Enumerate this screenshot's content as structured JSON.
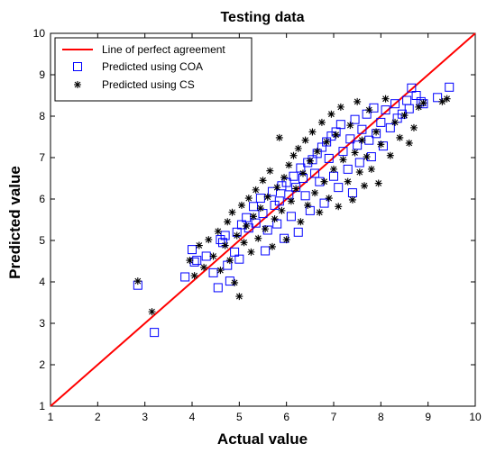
{
  "chart_data": {
    "type": "scatter",
    "title": "Testing data",
    "xlabel": "Actual value",
    "ylabel": "Predicted value",
    "xlim": [
      1,
      10
    ],
    "ylim": [
      1,
      10
    ],
    "xticks": [
      1,
      2,
      3,
      4,
      5,
      6,
      7,
      8,
      9,
      10
    ],
    "yticks": [
      1,
      2,
      3,
      4,
      5,
      6,
      7,
      8,
      9,
      10
    ],
    "grid": false,
    "legend_position": "top-left",
    "reference_line": {
      "name": "Line of perfect agreement",
      "x": [
        1,
        10
      ],
      "y": [
        1,
        10
      ],
      "color": "#ff0000"
    },
    "series": [
      {
        "name": "Predicted using COA",
        "marker": "square",
        "color": "#0000ff",
        "points": [
          [
            2.85,
            3.92
          ],
          [
            3.2,
            2.78
          ],
          [
            3.85,
            4.12
          ],
          [
            4.0,
            4.78
          ],
          [
            4.05,
            4.48
          ],
          [
            4.1,
            4.52
          ],
          [
            4.3,
            4.62
          ],
          [
            4.45,
            4.22
          ],
          [
            4.55,
            3.86
          ],
          [
            4.6,
            5.02
          ],
          [
            4.65,
            4.95
          ],
          [
            4.7,
            5.12
          ],
          [
            4.75,
            4.4
          ],
          [
            4.8,
            4.02
          ],
          [
            4.9,
            4.72
          ],
          [
            4.95,
            5.2
          ],
          [
            5.0,
            4.55
          ],
          [
            5.05,
            5.38
          ],
          [
            5.15,
            5.55
          ],
          [
            5.2,
            5.3
          ],
          [
            5.3,
            5.82
          ],
          [
            5.35,
            5.42
          ],
          [
            5.45,
            6.02
          ],
          [
            5.5,
            5.65
          ],
          [
            5.55,
            4.75
          ],
          [
            5.6,
            5.25
          ],
          [
            5.7,
            6.18
          ],
          [
            5.75,
            5.85
          ],
          [
            5.8,
            5.4
          ],
          [
            5.85,
            5.95
          ],
          [
            5.9,
            6.32
          ],
          [
            5.95,
            5.05
          ],
          [
            6.0,
            6.4
          ],
          [
            6.05,
            6.1
          ],
          [
            6.1,
            5.58
          ],
          [
            6.15,
            6.55
          ],
          [
            6.2,
            6.28
          ],
          [
            6.25,
            5.2
          ],
          [
            6.3,
            6.75
          ],
          [
            6.35,
            6.5
          ],
          [
            6.4,
            6.08
          ],
          [
            6.45,
            6.88
          ],
          [
            6.5,
            5.72
          ],
          [
            6.55,
            6.95
          ],
          [
            6.6,
            6.62
          ],
          [
            6.65,
            7.1
          ],
          [
            6.7,
            6.42
          ],
          [
            6.75,
            7.25
          ],
          [
            6.8,
            5.9
          ],
          [
            6.85,
            7.38
          ],
          [
            6.9,
            6.98
          ],
          [
            6.95,
            7.52
          ],
          [
            7.0,
            6.55
          ],
          [
            7.05,
            7.62
          ],
          [
            7.1,
            6.28
          ],
          [
            7.15,
            7.8
          ],
          [
            7.2,
            7.15
          ],
          [
            7.3,
            6.72
          ],
          [
            7.35,
            7.45
          ],
          [
            7.4,
            6.15
          ],
          [
            7.45,
            7.92
          ],
          [
            7.5,
            7.3
          ],
          [
            7.55,
            6.88
          ],
          [
            7.6,
            7.68
          ],
          [
            7.7,
            8.05
          ],
          [
            7.75,
            7.42
          ],
          [
            7.8,
            7.02
          ],
          [
            7.85,
            8.2
          ],
          [
            7.9,
            7.58
          ],
          [
            8.0,
            7.85
          ],
          [
            8.05,
            7.28
          ],
          [
            8.1,
            8.15
          ],
          [
            8.2,
            7.72
          ],
          [
            8.3,
            8.3
          ],
          [
            8.35,
            7.95
          ],
          [
            8.45,
            8.05
          ],
          [
            8.55,
            8.38
          ],
          [
            8.6,
            8.18
          ],
          [
            8.65,
            8.68
          ],
          [
            8.75,
            8.5
          ],
          [
            8.85,
            8.35
          ],
          [
            8.9,
            8.3
          ],
          [
            9.2,
            8.45
          ],
          [
            9.45,
            8.7
          ]
        ]
      },
      {
        "name": "Predicted using CS",
        "marker": "asterisk",
        "color": "#000000",
        "points": [
          [
            2.85,
            4.02
          ],
          [
            3.15,
            3.28
          ],
          [
            3.95,
            4.52
          ],
          [
            4.05,
            4.15
          ],
          [
            4.15,
            4.88
          ],
          [
            4.25,
            4.35
          ],
          [
            4.35,
            5.02
          ],
          [
            4.45,
            4.62
          ],
          [
            4.55,
            5.22
          ],
          [
            4.6,
            4.28
          ],
          [
            4.7,
            4.88
          ],
          [
            4.75,
            5.45
          ],
          [
            4.8,
            4.52
          ],
          [
            4.85,
            5.68
          ],
          [
            4.9,
            3.98
          ],
          [
            4.95,
            5.12
          ],
          [
            5.0,
            3.65
          ],
          [
            5.05,
            5.85
          ],
          [
            5.1,
            4.95
          ],
          [
            5.15,
            5.35
          ],
          [
            5.2,
            6.02
          ],
          [
            5.25,
            4.72
          ],
          [
            5.3,
            5.58
          ],
          [
            5.35,
            6.22
          ],
          [
            5.4,
            5.05
          ],
          [
            5.45,
            5.78
          ],
          [
            5.5,
            6.45
          ],
          [
            5.55,
            5.28
          ],
          [
            5.6,
            6.05
          ],
          [
            5.65,
            6.68
          ],
          [
            5.7,
            4.85
          ],
          [
            5.75,
            5.52
          ],
          [
            5.8,
            6.28
          ],
          [
            5.85,
            7.48
          ],
          [
            5.9,
            5.72
          ],
          [
            5.95,
            6.52
          ],
          [
            6.0,
            5.02
          ],
          [
            6.05,
            6.82
          ],
          [
            6.1,
            5.95
          ],
          [
            6.15,
            7.05
          ],
          [
            6.2,
            6.25
          ],
          [
            6.25,
            7.22
          ],
          [
            6.3,
            5.45
          ],
          [
            6.35,
            6.62
          ],
          [
            6.4,
            7.42
          ],
          [
            6.45,
            5.85
          ],
          [
            6.5,
            6.92
          ],
          [
            6.55,
            7.62
          ],
          [
            6.6,
            6.15
          ],
          [
            6.65,
            7.15
          ],
          [
            6.7,
            5.68
          ],
          [
            6.75,
            7.85
          ],
          [
            6.8,
            6.42
          ],
          [
            6.85,
            7.38
          ],
          [
            6.9,
            6.02
          ],
          [
            6.95,
            8.05
          ],
          [
            7.0,
            6.72
          ],
          [
            7.05,
            7.55
          ],
          [
            7.1,
            5.82
          ],
          [
            7.15,
            8.22
          ],
          [
            7.2,
            6.95
          ],
          [
            7.3,
            6.42
          ],
          [
            7.35,
            7.78
          ],
          [
            7.4,
            5.98
          ],
          [
            7.45,
            7.12
          ],
          [
            7.5,
            8.35
          ],
          [
            7.55,
            6.65
          ],
          [
            7.6,
            7.42
          ],
          [
            7.65,
            6.32
          ],
          [
            7.7,
            7.02
          ],
          [
            7.75,
            8.15
          ],
          [
            7.8,
            6.72
          ],
          [
            7.9,
            7.62
          ],
          [
            7.95,
            6.38
          ],
          [
            8.0,
            7.32
          ],
          [
            8.1,
            8.42
          ],
          [
            8.2,
            7.05
          ],
          [
            8.3,
            7.85
          ],
          [
            8.4,
            7.48
          ],
          [
            8.5,
            8.02
          ],
          [
            8.6,
            7.35
          ],
          [
            8.7,
            7.72
          ],
          [
            8.8,
            8.22
          ],
          [
            8.9,
            8.32
          ],
          [
            9.3,
            8.35
          ],
          [
            9.4,
            8.42
          ]
        ]
      }
    ]
  }
}
